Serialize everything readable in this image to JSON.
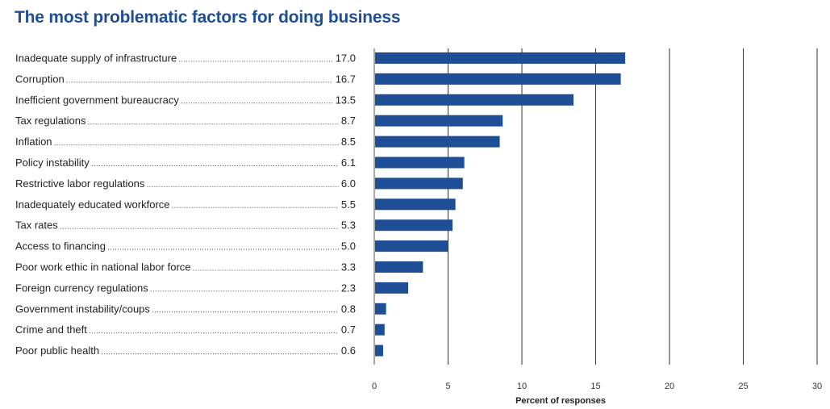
{
  "chart_data": {
    "type": "bar",
    "orientation": "horizontal",
    "title": "The most problematic factors for doing business",
    "categories": [
      "Inadequate supply of infrastructure",
      "Corruption",
      "Inefficient government bureaucracy",
      "Tax regulations",
      "Inflation",
      "Policy instability",
      "Restrictive labor regulations",
      "Inadequately educated workforce",
      "Tax rates",
      "Access to financing",
      "Poor work ethic in national labor force",
      "Foreign currency regulations",
      "Government instability/coups",
      "Crime and theft",
      "Poor public health"
    ],
    "values": [
      17.0,
      16.7,
      13.5,
      8.7,
      8.5,
      6.1,
      6.0,
      5.5,
      5.3,
      5.0,
      3.3,
      2.3,
      0.8,
      0.7,
      0.6
    ],
    "value_labels": [
      "17.0",
      "16.7",
      "13.5",
      "8.7",
      "8.5",
      "6.1",
      "6.0",
      "5.5",
      "5.3",
      "5.0",
      "3.3",
      "2.3",
      "0.8",
      "0.7",
      "0.6"
    ],
    "xlabel": "Percent of responses",
    "ylabel": "",
    "xlim": [
      0,
      30
    ],
    "xticks": [
      "0",
      "5",
      "10",
      "15",
      "20",
      "25",
      "30"
    ],
    "xtick_values": [
      0,
      5,
      10,
      15,
      20,
      25,
      30
    ],
    "grid": "vertical",
    "legend": "none",
    "colors": {
      "bar": "#1d4e96",
      "title": "#1d4e96",
      "grid": "#333333"
    }
  }
}
